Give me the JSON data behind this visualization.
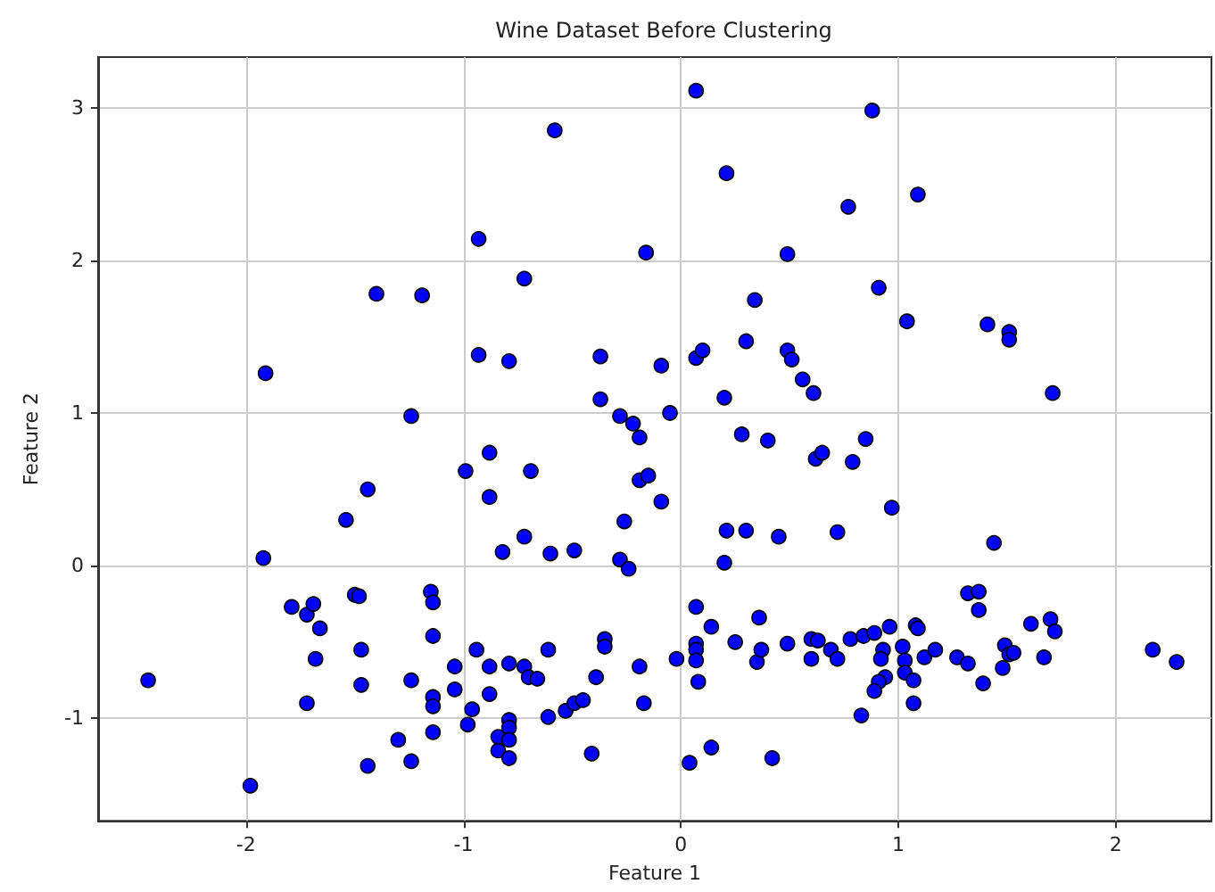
{
  "chart_data": {
    "type": "scatter",
    "title": "Wine Dataset Before Clustering",
    "xlabel": "Feature 1",
    "ylabel": "Feature 2",
    "xlim": [
      -2.68,
      2.44
    ],
    "ylim": [
      -1.67,
      3.33
    ],
    "xticks": [
      -2,
      -1,
      0,
      1,
      2
    ],
    "yticks": [
      -1,
      0,
      1,
      2,
      3
    ],
    "grid": true,
    "marker": "circle",
    "series": [
      {
        "color": "#0000ff",
        "x": [
          0.07,
          -0.58,
          0.88,
          0.21,
          -0.93,
          0.77,
          1.09,
          -0.16,
          0.49,
          0.91,
          -0.72,
          -1.4,
          -1.19,
          0.34,
          1.04,
          1.41,
          1.51,
          1.51,
          -1.91,
          -0.93,
          -0.79,
          -0.37,
          -0.09,
          0.07,
          0.1,
          0.3,
          0.49,
          0.51,
          0.56,
          0.61,
          1.71,
          -0.37,
          0.2,
          -1.24,
          -0.28,
          -0.05,
          -0.22,
          -0.19,
          0.28,
          0.4,
          0.85,
          -0.88,
          0.62,
          0.65,
          -0.99,
          -0.69,
          0.79,
          -0.19,
          -0.15,
          -1.44,
          -0.88,
          -0.09,
          0.97,
          -1.54,
          -0.26,
          -0.72,
          0.21,
          0.3,
          0.45,
          0.72,
          1.44,
          -0.82,
          -0.6,
          -0.49,
          -0.28,
          -0.24,
          0.2,
          -1.92,
          -2.45,
          -1.98,
          -1.79,
          -1.72,
          -1.69,
          -1.66,
          -1.68,
          -1.72,
          -1.5,
          -1.48,
          -1.47,
          -1.47,
          -1.44,
          -1.3,
          -1.24,
          -1.24,
          -1.15,
          -1.14,
          -1.14,
          -1.14,
          -1.14,
          -1.14,
          -1.04,
          -1.04,
          -0.96,
          -0.98,
          -0.94,
          -0.88,
          -0.88,
          -0.79,
          -0.72,
          -0.7,
          -0.66,
          -0.61,
          -0.61,
          -0.84,
          -0.84,
          -0.79,
          -0.79,
          -0.79,
          -0.79,
          -0.53,
          -0.49,
          -0.45,
          -0.41,
          -0.39,
          -0.35,
          -0.35,
          -0.19,
          -0.17,
          -0.02,
          0.07,
          0.07,
          0.07,
          0.07,
          0.08,
          0.14,
          0.25,
          0.04,
          0.14,
          0.42,
          0.36,
          0.35,
          0.37,
          0.49,
          0.6,
          0.63,
          0.6,
          0.69,
          0.72,
          0.78,
          1.32,
          1.37,
          1.37,
          0.84,
          0.89,
          0.96,
          1.08,
          1.09,
          1.02,
          0.93,
          0.92,
          1.03,
          1.12,
          1.17,
          1.27,
          1.32,
          1.39,
          1.48,
          1.49,
          1.51,
          1.53,
          1.61,
          1.7,
          1.72,
          1.67,
          1.03,
          1.07,
          1.07,
          0.94,
          0.91,
          0.89,
          0.83,
          2.17,
          2.28
        ],
        "values": [
          3.11,
          2.85,
          2.98,
          2.57,
          2.14,
          2.35,
          2.43,
          2.05,
          2.04,
          1.82,
          1.88,
          1.78,
          1.77,
          1.74,
          1.6,
          1.58,
          1.53,
          1.48,
          1.26,
          1.38,
          1.34,
          1.37,
          1.31,
          1.36,
          1.41,
          1.47,
          1.41,
          1.35,
          1.22,
          1.13,
          1.13,
          1.09,
          1.1,
          0.98,
          0.98,
          1.0,
          0.93,
          0.84,
          0.86,
          0.82,
          0.83,
          0.74,
          0.7,
          0.74,
          0.62,
          0.62,
          0.68,
          0.56,
          0.59,
          0.5,
          0.45,
          0.42,
          0.38,
          0.3,
          0.29,
          0.19,
          0.23,
          0.23,
          0.19,
          0.22,
          0.15,
          0.09,
          0.08,
          0.1,
          0.04,
          -0.02,
          0.02,
          0.05,
          -0.75,
          -1.44,
          -0.27,
          -0.32,
          -0.25,
          -0.41,
          -0.61,
          -0.9,
          -0.19,
          -0.2,
          -0.55,
          -0.78,
          -1.31,
          -1.14,
          -1.28,
          -0.75,
          -0.17,
          -0.24,
          -0.46,
          -0.86,
          -0.92,
          -1.09,
          -0.66,
          -0.81,
          -0.94,
          -1.04,
          -0.55,
          -0.66,
          -0.84,
          -0.64,
          -0.66,
          -0.73,
          -0.74,
          -0.55,
          -0.99,
          -1.12,
          -1.21,
          -1.01,
          -1.06,
          -1.14,
          -1.26,
          -0.95,
          -0.9,
          -0.88,
          -1.23,
          -0.73,
          -0.48,
          -0.53,
          -0.66,
          -0.9,
          -0.61,
          -0.27,
          -0.51,
          -0.55,
          -0.62,
          -0.76,
          -0.4,
          -0.5,
          -1.29,
          -1.19,
          -1.26,
          -0.34,
          -0.63,
          -0.55,
          -0.51,
          -0.48,
          -0.49,
          -0.61,
          -0.55,
          -0.61,
          -0.48,
          -0.18,
          -0.17,
          -0.29,
          -0.46,
          -0.44,
          -0.4,
          -0.39,
          -0.41,
          -0.53,
          -0.55,
          -0.61,
          -0.62,
          -0.6,
          -0.55,
          -0.6,
          -0.64,
          -0.77,
          -0.67,
          -0.52,
          -0.58,
          -0.57,
          -0.38,
          -0.35,
          -0.43,
          -0.6,
          -0.7,
          -0.75,
          -0.9,
          -0.73,
          -0.76,
          -0.82,
          -0.98,
          -0.55,
          -0.63
        ]
      }
    ]
  }
}
